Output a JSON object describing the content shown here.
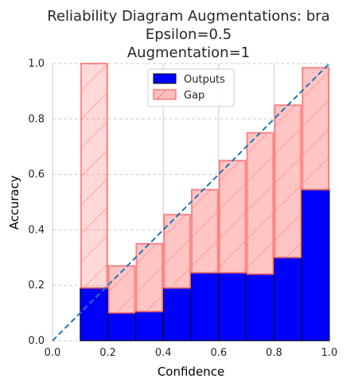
{
  "chart_data": {
    "type": "bar",
    "title_lines": [
      "Reliability Diagram Augmentations: bra",
      "Epsilon=0.5",
      "Augmentation=1"
    ],
    "xlabel": "Confidence",
    "ylabel": "Accuracy",
    "xlim": [
      0.0,
      1.0
    ],
    "ylim": [
      0.0,
      1.0
    ],
    "x_ticks": [
      "0.0",
      "0.2",
      "0.4",
      "0.6",
      "0.8",
      "1.0"
    ],
    "y_ticks": [
      "0.0",
      "0.2",
      "0.4",
      "0.6",
      "0.8",
      "1.0"
    ],
    "grid": true,
    "legend_placement": "top-center",
    "bins": [
      {
        "start": 0.1,
        "end": 0.2,
        "output": 0.19,
        "expected": 1.0
      },
      {
        "start": 0.2,
        "end": 0.3,
        "output": 0.1,
        "expected": 0.27
      },
      {
        "start": 0.3,
        "end": 0.4,
        "output": 0.105,
        "expected": 0.35
      },
      {
        "start": 0.4,
        "end": 0.5,
        "output": 0.19,
        "expected": 0.455
      },
      {
        "start": 0.5,
        "end": 0.6,
        "output": 0.245,
        "expected": 0.545
      },
      {
        "start": 0.6,
        "end": 0.7,
        "output": 0.245,
        "expected": 0.65
      },
      {
        "start": 0.7,
        "end": 0.8,
        "output": 0.24,
        "expected": 0.75
      },
      {
        "start": 0.8,
        "end": 0.9,
        "output": 0.3,
        "expected": 0.85
      },
      {
        "start": 0.9,
        "end": 1.0,
        "output": 0.545,
        "expected": 0.985
      }
    ],
    "series": [
      {
        "name": "Outputs",
        "color": "#0000ff",
        "edge": "#000000"
      },
      {
        "name": "Gap",
        "color": "#ffbfbf",
        "edge": "#ff6060"
      }
    ],
    "diagonal": {
      "from": [
        0,
        0
      ],
      "to": [
        1,
        1
      ],
      "color": "#1f77b4",
      "style": "dashed"
    }
  }
}
